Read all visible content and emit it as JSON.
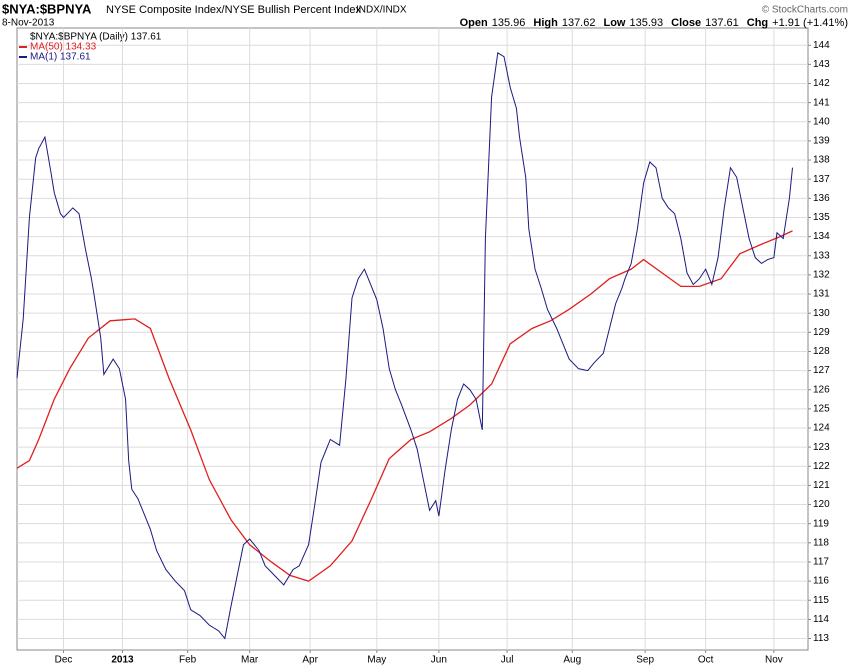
{
  "chart_data": {
    "type": "line",
    "symbol": "$NYA:$BPNYA",
    "title": "NYSE Composite Index/NYSE Bullish Percent Index",
    "exchange": "INDX/INDX",
    "date": "8-Nov-2013",
    "quote": [
      {
        "label": "Open",
        "value": "135.96"
      },
      {
        "label": "High",
        "value": "137.62"
      },
      {
        "label": "Low",
        "value": "135.93"
      },
      {
        "label": "Close",
        "value": "137.61"
      },
      {
        "label": "Chg",
        "value": "+1.91 (+1.41%)"
      }
    ],
    "credit": "© StockCharts.com",
    "price_legend": "$NYA:$BPNYA (Daily) 137.61",
    "grid": true,
    "xlim": [
      0,
      255
    ],
    "xticks": [
      {
        "value": 15,
        "label": "Dec"
      },
      {
        "value": 34,
        "label": "2013"
      },
      {
        "value": 55,
        "label": "Feb"
      },
      {
        "value": 75,
        "label": "Mar"
      },
      {
        "value": 94.5,
        "label": "Apr"
      },
      {
        "value": 116,
        "label": "May"
      },
      {
        "value": 136,
        "label": "Jun"
      },
      {
        "value": 158,
        "label": "Jul"
      },
      {
        "value": 179,
        "label": "Aug"
      },
      {
        "value": 202.5,
        "label": "Sep"
      },
      {
        "value": 222,
        "label": "Oct"
      },
      {
        "value": 244,
        "label": "Nov"
      }
    ],
    "ylim": [
      112.4,
      144.9
    ],
    "yticks": [
      113,
      114,
      115,
      116,
      117,
      118,
      119,
      120,
      121,
      122,
      123,
      124,
      125,
      126,
      127,
      128,
      129,
      130,
      131,
      132,
      133,
      134,
      135,
      136,
      137,
      138,
      139,
      140,
      141,
      142,
      143,
      144
    ],
    "series": [
      {
        "name": "MA(50) 134.33",
        "color": "#e02020",
        "x": [
          0,
          4,
          7,
          12,
          17,
          23,
          30,
          38,
          43,
          49,
          56,
          62,
          69,
          75,
          82,
          88,
          94,
          101,
          108,
          114,
          120,
          127,
          133,
          140,
          146,
          153,
          159,
          166,
          172,
          178,
          185,
          191,
          198,
          202,
          208,
          214,
          220,
          227,
          233,
          240,
          246,
          250
        ],
        "values": [
          121.9,
          122.3,
          123.4,
          125.5,
          127.1,
          128.7,
          129.6,
          129.7,
          129.2,
          126.6,
          123.9,
          121.3,
          119.2,
          117.9,
          117.0,
          116.3,
          116.0,
          116.8,
          118.1,
          120.2,
          122.4,
          123.4,
          123.8,
          124.5,
          125.2,
          126.3,
          128.4,
          129.2,
          129.6,
          130.2,
          131.0,
          131.8,
          132.3,
          132.8,
          132.1,
          131.4,
          131.4,
          131.8,
          133.1,
          133.6,
          134.0,
          134.3
        ]
      },
      {
        "name": "MA(1) 137.61",
        "color": "#1a1a80",
        "x": [
          0,
          2,
          4,
          6,
          7,
          9,
          11,
          12,
          14,
          15,
          18,
          20,
          22,
          24,
          25,
          27,
          28,
          31,
          33,
          35,
          36,
          37,
          39,
          41,
          43,
          45,
          48,
          51,
          54,
          56,
          59,
          62,
          65,
          67,
          69,
          71,
          73,
          75,
          78,
          80,
          83,
          86,
          89,
          91,
          94,
          96,
          98,
          101,
          104,
          106,
          108,
          110,
          112,
          114,
          116,
          118,
          120,
          122,
          124,
          127,
          129,
          131,
          133,
          135,
          136,
          138,
          140,
          142,
          144,
          146,
          148,
          150,
          151,
          153,
          155,
          157,
          159,
          161,
          162,
          164,
          165,
          167,
          169,
          171,
          174,
          176,
          178,
          181,
          184,
          186,
          189,
          191,
          193,
          195,
          196,
          198,
          200,
          202,
          204,
          206,
          208,
          210,
          212,
          214,
          216,
          218,
          220,
          222,
          224,
          226,
          228,
          230,
          232,
          234,
          236,
          238,
          240,
          242,
          244,
          245,
          247,
          249,
          250
        ],
        "values": [
          126.6,
          129.7,
          135.0,
          138.1,
          138.6,
          139.2,
          137.3,
          136.3,
          135.2,
          135.0,
          135.5,
          135.2,
          133.4,
          131.8,
          130.8,
          128.7,
          126.8,
          127.6,
          127.1,
          125.5,
          122.3,
          120.8,
          120.3,
          119.5,
          118.7,
          117.6,
          116.6,
          116.0,
          115.5,
          114.5,
          114.2,
          113.7,
          113.4,
          113.0,
          114.7,
          116.3,
          117.9,
          118.2,
          117.6,
          116.8,
          116.3,
          115.8,
          116.6,
          116.8,
          117.9,
          120.0,
          122.2,
          123.4,
          123.1,
          126.5,
          130.8,
          131.8,
          132.3,
          131.5,
          130.7,
          129.2,
          127.1,
          126.0,
          125.2,
          123.9,
          122.9,
          121.3,
          119.7,
          120.2,
          119.4,
          121.8,
          123.9,
          125.5,
          126.3,
          126.0,
          125.5,
          123.9,
          133.9,
          141.3,
          143.6,
          143.4,
          141.8,
          140.7,
          139.2,
          137.1,
          134.4,
          132.3,
          131.3,
          130.2,
          129.2,
          128.4,
          127.6,
          127.1,
          127.0,
          127.4,
          127.9,
          129.2,
          130.5,
          131.3,
          131.8,
          132.6,
          134.4,
          136.8,
          137.9,
          137.6,
          136.0,
          135.5,
          135.2,
          133.9,
          132.1,
          131.5,
          131.8,
          132.3,
          131.5,
          132.9,
          135.5,
          137.6,
          137.1,
          135.5,
          133.9,
          132.9,
          132.6,
          132.8,
          132.9,
          134.2,
          133.9,
          136.0,
          137.6
        ]
      }
    ]
  }
}
